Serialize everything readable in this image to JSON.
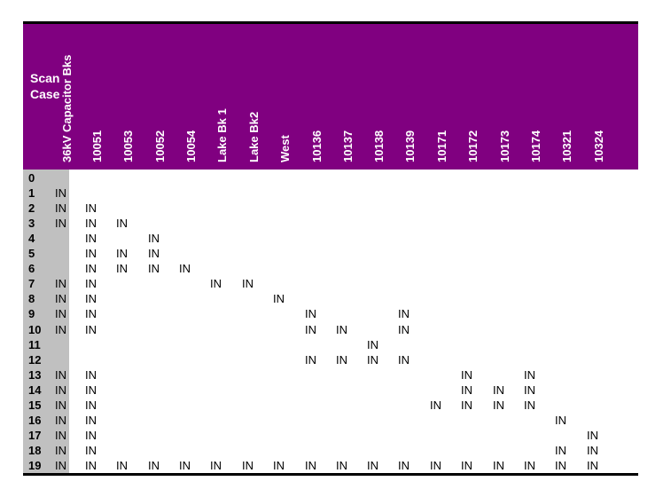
{
  "table": {
    "row_header_label_line1": "Scan",
    "row_header_label_line2": "Case",
    "columns": [
      "36kV Capacitor Bks",
      "10051",
      "10053",
      "10052",
      "10054",
      "Lake Bk 1",
      "Lake Bk2",
      "West",
      "10136",
      "10137",
      "10138",
      "10139",
      "10171",
      "10172",
      "10173",
      "10174",
      "10321",
      "10324"
    ],
    "cell_marker": "IN",
    "header_color": "#800080",
    "row_header_color": "#c0c0c0",
    "rows": [
      {
        "case": "0",
        "in_columns": []
      },
      {
        "case": "1",
        "in_columns": [
          0
        ]
      },
      {
        "case": "2",
        "in_columns": [
          0,
          1
        ]
      },
      {
        "case": "3",
        "in_columns": [
          0,
          1,
          2
        ]
      },
      {
        "case": "4",
        "in_columns": [
          1,
          3
        ]
      },
      {
        "case": "5",
        "in_columns": [
          1,
          2,
          3
        ]
      },
      {
        "case": "6",
        "in_columns": [
          1,
          2,
          3,
          4
        ]
      },
      {
        "case": "7",
        "in_columns": [
          0,
          1,
          5,
          6
        ]
      },
      {
        "case": "8",
        "in_columns": [
          0,
          1,
          7
        ]
      },
      {
        "case": "9",
        "in_columns": [
          0,
          1,
          8,
          11
        ]
      },
      {
        "case": "10",
        "in_columns": [
          0,
          1,
          8,
          9,
          11
        ]
      },
      {
        "case": "11",
        "in_columns": [
          10
        ]
      },
      {
        "case": "12",
        "in_columns": [
          8,
          9,
          10,
          11
        ]
      },
      {
        "case": "13",
        "in_columns": [
          0,
          1,
          13,
          15
        ]
      },
      {
        "case": "14",
        "in_columns": [
          0,
          1,
          13,
          14,
          15
        ]
      },
      {
        "case": "15",
        "in_columns": [
          0,
          1,
          12,
          13,
          14,
          15
        ]
      },
      {
        "case": "16",
        "in_columns": [
          0,
          1,
          16
        ]
      },
      {
        "case": "17",
        "in_columns": [
          0,
          1,
          17
        ]
      },
      {
        "case": "18",
        "in_columns": [
          0,
          1,
          16,
          17
        ]
      },
      {
        "case": "19",
        "in_columns": [
          0,
          1,
          2,
          3,
          4,
          5,
          6,
          7,
          8,
          9,
          10,
          11,
          12,
          13,
          14,
          15,
          16,
          17
        ]
      }
    ]
  }
}
